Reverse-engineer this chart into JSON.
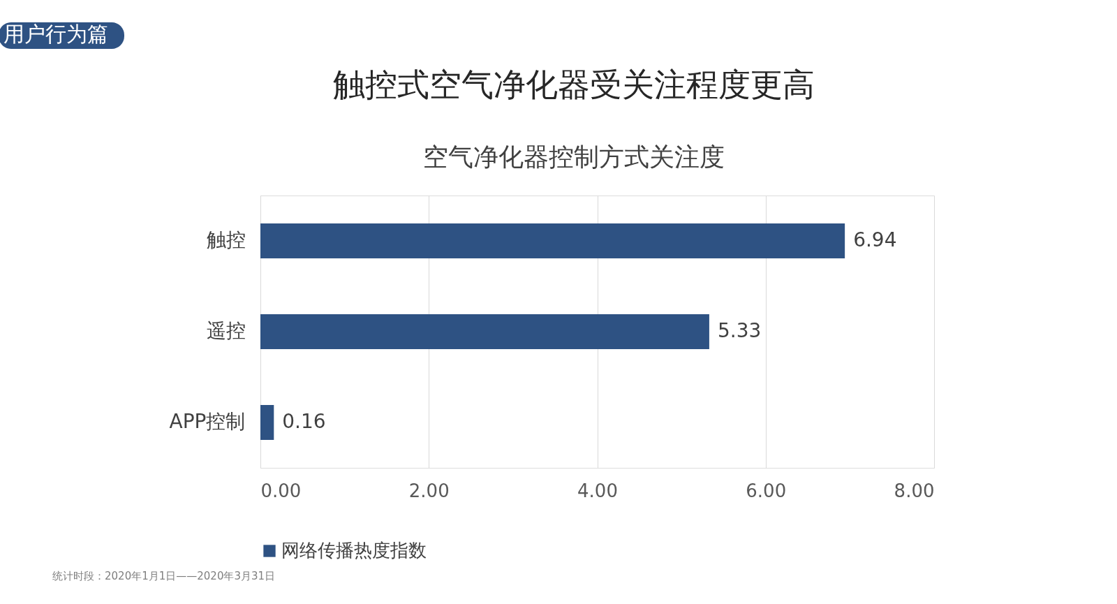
{
  "chart_data": {
    "type": "bar",
    "orientation": "horizontal",
    "title": "触控式空气净化器受关注程度更高",
    "subtitle": "空气净化器控制方式关注度",
    "categories": [
      "触控",
      "遥控",
      "APP控制"
    ],
    "series": [
      {
        "name": "网络传播热度指数",
        "color": "#2e5283",
        "values": [
          6.94,
          5.33,
          0.16
        ]
      }
    ],
    "xlim": [
      0,
      8
    ],
    "xticks": [
      {
        "value": 0,
        "label": "0.00"
      },
      {
        "value": 2,
        "label": "2.00"
      },
      {
        "value": 4,
        "label": "4.00"
      },
      {
        "value": 6,
        "label": "6.00"
      },
      {
        "value": 8,
        "label": "8.00"
      }
    ],
    "grid": "x",
    "legend": "bottom",
    "data_labels": true,
    "annotations": [
      "用户行为篇",
      "统计时段：2020年1月1日——2020年3月31日"
    ]
  }
}
